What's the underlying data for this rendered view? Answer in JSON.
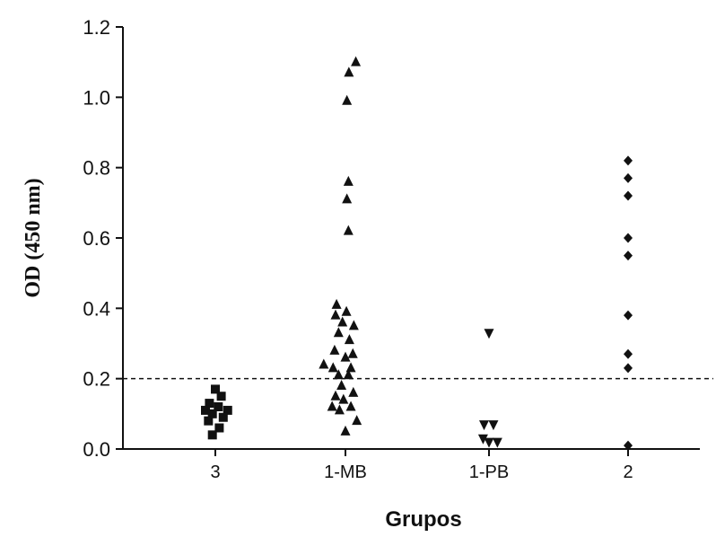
{
  "chart_data": {
    "type": "scatter",
    "title": "",
    "xlabel": "Grupos",
    "ylabel": "OD (450 nm)",
    "categories": [
      "3",
      "1-MB",
      "1-PB",
      "2"
    ],
    "ylim": [
      0,
      1.2
    ],
    "yticks": [
      "0.0",
      "0.2",
      "0.4",
      "0.6",
      "0.8",
      "1.0",
      "1.2"
    ],
    "reference_line": 0.2,
    "grid": false,
    "legend": "none",
    "series": [
      {
        "category": "3",
        "marker": "square",
        "points": [
          {
            "dx": 0.0,
            "y": 0.17
          },
          {
            "dx": 0.12,
            "y": 0.15
          },
          {
            "dx": -0.12,
            "y": 0.13
          },
          {
            "dx": 0.06,
            "y": 0.12
          },
          {
            "dx": -0.2,
            "y": 0.11
          },
          {
            "dx": 0.25,
            "y": 0.11
          },
          {
            "dx": -0.06,
            "y": 0.1
          },
          {
            "dx": 0.16,
            "y": 0.09
          },
          {
            "dx": -0.14,
            "y": 0.08
          },
          {
            "dx": 0.08,
            "y": 0.06
          },
          {
            "dx": -0.06,
            "y": 0.04
          }
        ]
      },
      {
        "category": "1-MB",
        "marker": "triangle-up",
        "points": [
          {
            "dx": 0.21,
            "y": 1.1
          },
          {
            "dx": 0.07,
            "y": 1.07
          },
          {
            "dx": 0.03,
            "y": 0.99
          },
          {
            "dx": 0.06,
            "y": 0.76
          },
          {
            "dx": 0.03,
            "y": 0.71
          },
          {
            "dx": 0.06,
            "y": 0.62
          },
          {
            "dx": -0.18,
            "y": 0.41
          },
          {
            "dx": 0.02,
            "y": 0.39
          },
          {
            "dx": -0.2,
            "y": 0.38
          },
          {
            "dx": -0.06,
            "y": 0.36
          },
          {
            "dx": 0.17,
            "y": 0.35
          },
          {
            "dx": -0.14,
            "y": 0.33
          },
          {
            "dx": 0.08,
            "y": 0.31
          },
          {
            "dx": -0.22,
            "y": 0.28
          },
          {
            "dx": 0.15,
            "y": 0.27
          },
          {
            "dx": 0.0,
            "y": 0.26
          },
          {
            "dx": -0.44,
            "y": 0.24
          },
          {
            "dx": -0.25,
            "y": 0.23
          },
          {
            "dx": 0.11,
            "y": 0.23
          },
          {
            "dx": -0.14,
            "y": 0.21
          },
          {
            "dx": 0.06,
            "y": 0.21
          },
          {
            "dx": -0.08,
            "y": 0.18
          },
          {
            "dx": 0.16,
            "y": 0.16
          },
          {
            "dx": -0.2,
            "y": 0.15
          },
          {
            "dx": -0.04,
            "y": 0.14
          },
          {
            "dx": -0.27,
            "y": 0.12
          },
          {
            "dx": 0.11,
            "y": 0.12
          },
          {
            "dx": -0.12,
            "y": 0.11
          },
          {
            "dx": 0.23,
            "y": 0.08
          },
          {
            "dx": 0.0,
            "y": 0.05
          }
        ]
      },
      {
        "category": "1-PB",
        "marker": "triangle-down",
        "points": [
          {
            "dx": 0.0,
            "y": 0.33
          },
          {
            "dx": -0.1,
            "y": 0.07
          },
          {
            "dx": 0.09,
            "y": 0.07
          },
          {
            "dx": -0.12,
            "y": 0.03
          },
          {
            "dx": 0.0,
            "y": 0.02
          },
          {
            "dx": 0.17,
            "y": 0.02
          }
        ]
      },
      {
        "category": "2",
        "marker": "diamond",
        "points": [
          {
            "dx": 0.0,
            "y": 0.82
          },
          {
            "dx": 0.0,
            "y": 0.77
          },
          {
            "dx": 0.0,
            "y": 0.72
          },
          {
            "dx": 0.0,
            "y": 0.6
          },
          {
            "dx": 0.0,
            "y": 0.55
          },
          {
            "dx": 0.0,
            "y": 0.38
          },
          {
            "dx": 0.0,
            "y": 0.27
          },
          {
            "dx": 0.0,
            "y": 0.23
          },
          {
            "dx": 0.0,
            "y": 0.01
          }
        ]
      }
    ]
  }
}
